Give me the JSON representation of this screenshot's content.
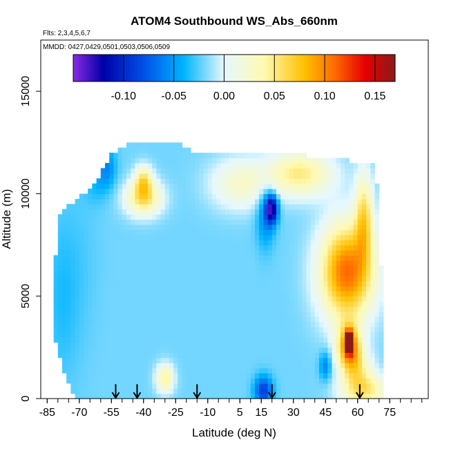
{
  "chart_data": {
    "type": "heatmap",
    "title": "ATOM4 Southbound WS_Abs_660nm",
    "subtitle_flights": "Flts: 2,3,4,5,6,7",
    "subtitle_dates": "MMDD: 0427,0429,0501,0503,0506,0509",
    "xlabel": "Latitude (deg N)",
    "ylabel": "Altitude (m)",
    "xlim": [
      -88,
      93
    ],
    "ylim": [
      0,
      17500
    ],
    "x_ticks": [
      -85,
      -70,
      -55,
      -40,
      -25,
      -10,
      5,
      15,
      30,
      45,
      60,
      75
    ],
    "x_minor_step": 5,
    "y_ticks": [
      0,
      5000,
      10000,
      15000
    ],
    "colorbar": {
      "range": [
        -0.15,
        0.17
      ],
      "ticks": [
        -0.1,
        -0.05,
        0.0,
        0.05,
        0.1,
        0.15
      ],
      "tick_labels": [
        "-0.10",
        "-0.05",
        "0.00",
        "0.05",
        "0.10",
        "0.15"
      ],
      "colors": [
        "#8a2be2",
        "#0000a8",
        "#0050e6",
        "#00b4ff",
        "#e6f8ff",
        "#fff9b0",
        "#ffc000",
        "#ff6a00",
        "#e60000",
        "#8b1a1a"
      ],
      "stops": [
        -0.15,
        -0.12,
        -0.08,
        -0.04,
        0.0,
        0.04,
        0.08,
        0.11,
        0.14,
        0.17
      ]
    },
    "envelope_upper_altitude": [
      {
        "lat": -72,
        "alt": 9600
      },
      {
        "lat": -65,
        "alt": 10300
      },
      {
        "lat": -60,
        "alt": 11000
      },
      {
        "lat": -55,
        "alt": 11900
      },
      {
        "lat": -45,
        "alt": 12500
      },
      {
        "lat": -25,
        "alt": 12500
      },
      {
        "lat": -15,
        "alt": 12000
      },
      {
        "lat": 25,
        "alt": 12000
      },
      {
        "lat": 67,
        "alt": 11500
      },
      {
        "lat": 70,
        "alt": 10100
      },
      {
        "lat": 71,
        "alt": 6500
      },
      {
        "lat": 72,
        "alt": 300
      }
    ],
    "envelope_lower_altitude": [
      {
        "lat": -73,
        "alt": 0
      },
      {
        "lat": 72,
        "alt": 0
      }
    ],
    "envelope_left_latitude": [
      {
        "alt": 0,
        "lat": -72
      },
      {
        "alt": 1000,
        "lat": -76
      },
      {
        "alt": 2500,
        "lat": -80
      },
      {
        "alt": 3000,
        "lat": -82
      },
      {
        "alt": 6000,
        "lat": -82
      },
      {
        "alt": 9000,
        "lat": -79
      },
      {
        "alt": 10000,
        "lat": -73
      }
    ],
    "background_value": -0.02,
    "features": [
      {
        "lat": -78,
        "alt": 5000,
        "sx": 6,
        "sy": 3000,
        "value": -0.035
      },
      {
        "lat": -68,
        "alt": 7000,
        "sx": 6,
        "sy": 3000,
        "value": -0.025
      },
      {
        "lat": -57,
        "alt": 11300,
        "sx": 3,
        "sy": 700,
        "value": -0.055
      },
      {
        "lat": -62,
        "alt": 10500,
        "sx": 4,
        "sy": 700,
        "value": -0.035
      },
      {
        "lat": -40,
        "alt": 9800,
        "sx": 6,
        "sy": 600,
        "value": 0.06
      },
      {
        "lat": -40,
        "alt": 10700,
        "sx": 3,
        "sy": 500,
        "value": 0.045
      },
      {
        "lat": -30,
        "alt": 1000,
        "sx": 3,
        "sy": 500,
        "value": 0.045
      },
      {
        "lat": 5,
        "alt": 10500,
        "sx": 10,
        "sy": 900,
        "value": 0.025
      },
      {
        "lat": 33,
        "alt": 11000,
        "sx": 11,
        "sy": 800,
        "value": 0.05
      },
      {
        "lat": 20,
        "alt": 9300,
        "sx": 2,
        "sy": 500,
        "value": -0.13
      },
      {
        "lat": 17,
        "alt": 9000,
        "sx": 3,
        "sy": 1100,
        "value": -0.06
      },
      {
        "lat": 63,
        "alt": 9000,
        "sx": 3,
        "sy": 1500,
        "value": 0.05
      },
      {
        "lat": 55,
        "alt": 6200,
        "sx": 9,
        "sy": 1700,
        "value": 0.11
      },
      {
        "lat": 56,
        "alt": 2500,
        "sx": 4,
        "sy": 800,
        "value": 0.09
      },
      {
        "lat": 56,
        "alt": 2800,
        "sx": 1.2,
        "sy": 350,
        "value": 0.16
      },
      {
        "lat": 45,
        "alt": 1600,
        "sx": 2,
        "sy": 500,
        "value": -0.06
      },
      {
        "lat": 16,
        "alt": 400,
        "sx": 3,
        "sy": 500,
        "value": -0.09
      },
      {
        "lat": 63,
        "alt": 400,
        "sx": 8,
        "sy": 600,
        "value": 0.05
      },
      {
        "lat": 60,
        "alt": 1500,
        "sx": 5,
        "sy": 700,
        "value": 0.025
      }
    ],
    "arrows_latitude": [
      -53,
      -43,
      -15,
      20,
      61
    ]
  }
}
